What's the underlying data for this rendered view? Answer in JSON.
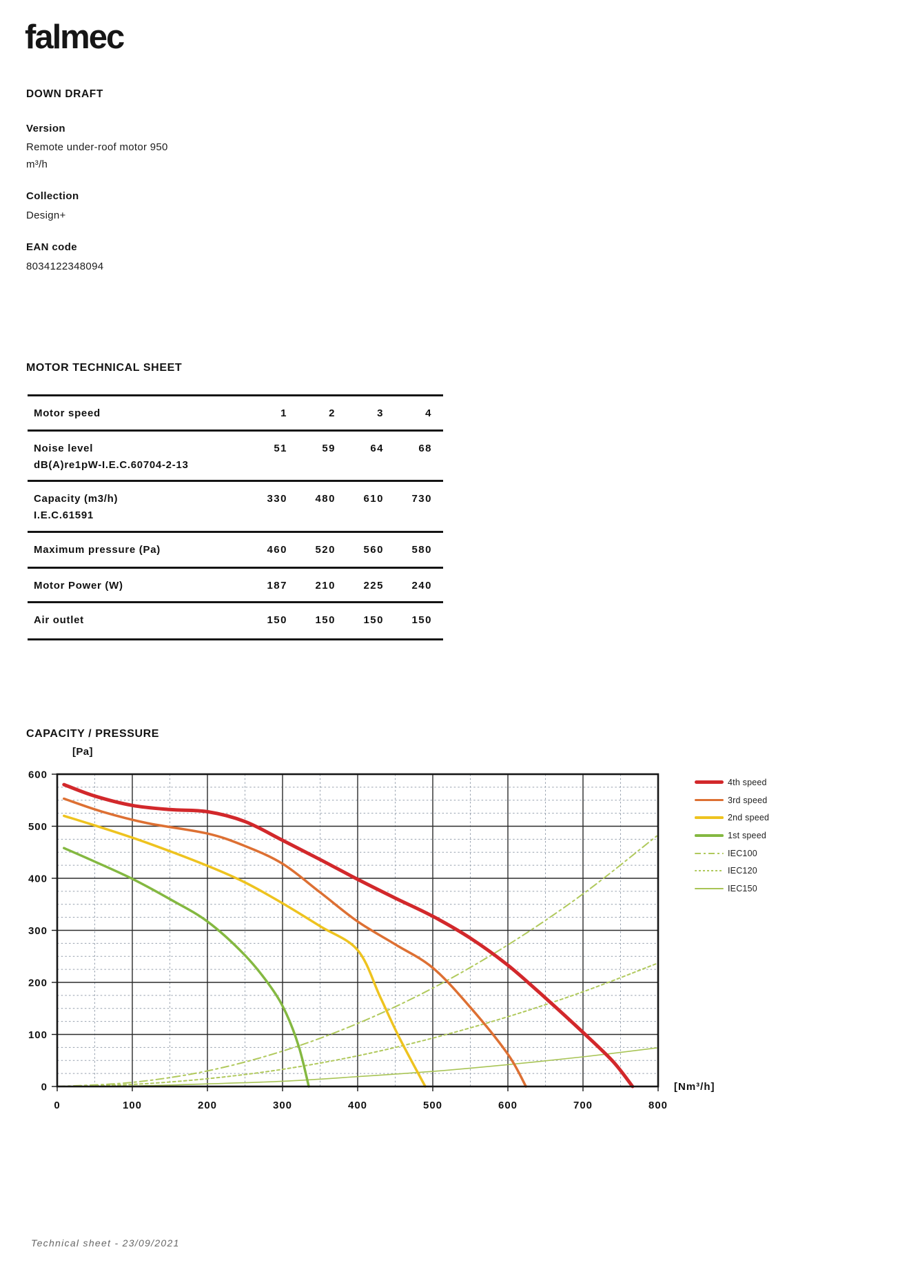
{
  "brand": {
    "logo_text": "falmec"
  },
  "product": {
    "title": "DOWN DRAFT",
    "version_label": "Version",
    "version_value": "Remote under-roof motor 950 m³/h",
    "collection_label": "Collection",
    "collection_value": "Design+",
    "ean_label": "EAN code",
    "ean_value": "8034122348094"
  },
  "table": {
    "title": "MOTOR TECHNICAL SHEET",
    "rows": [
      {
        "label": "Motor speed",
        "sublabel": "",
        "values": [
          "1",
          "2",
          "3",
          "4"
        ]
      },
      {
        "label": "Noise level",
        "sublabel": "dB(A)re1pW-I.E.C.60704-2-13",
        "values": [
          "51",
          "59",
          "64",
          "68"
        ]
      },
      {
        "label": "Capacity (m3/h)",
        "sublabel": "I.E.C.61591",
        "values": [
          "330",
          "480",
          "610",
          "730"
        ]
      },
      {
        "label": "Maximum pressure (Pa)",
        "sublabel": "",
        "values": [
          "460",
          "520",
          "560",
          "580"
        ]
      },
      {
        "label": "Motor Power (W)",
        "sublabel": "",
        "values": [
          "187",
          "210",
          "225",
          "240"
        ]
      },
      {
        "label": "Air outlet",
        "sublabel": "",
        "values": [
          "150",
          "150",
          "150",
          "150"
        ]
      }
    ]
  },
  "chart": {
    "title": "CAPACITY / PRESSURE",
    "y_unit": "[Pa]",
    "x_unit": "[Nm³/h]"
  },
  "chart_data": {
    "type": "line",
    "title": "CAPACITY / PRESSURE",
    "xlabel": "[Nm³/h]",
    "ylabel": "[Pa]",
    "xlim": [
      0,
      800
    ],
    "ylim": [
      0,
      600
    ],
    "xticks": [
      0,
      100,
      200,
      300,
      400,
      500,
      600,
      700,
      800
    ],
    "yticks": [
      0,
      100,
      200,
      300,
      400,
      500,
      600
    ],
    "x_minor_step": 50,
    "y_minor_step": 25,
    "grid": true,
    "legend_position": "right-top",
    "colors": {
      "major_grid": "#2b2b2b",
      "minor_grid": "#96a0ae",
      "border": "#161616"
    },
    "series": [
      {
        "name": "4th speed",
        "color": "#d2282b",
        "width": 5,
        "dash": "solid",
        "points": [
          [
            9,
            580
          ],
          [
            50,
            558
          ],
          [
            100,
            540
          ],
          [
            150,
            532
          ],
          [
            200,
            528
          ],
          [
            250,
            509
          ],
          [
            300,
            473
          ],
          [
            350,
            436
          ],
          [
            400,
            398
          ],
          [
            450,
            362
          ],
          [
            500,
            327
          ],
          [
            550,
            285
          ],
          [
            600,
            233
          ],
          [
            650,
            170
          ],
          [
            700,
            104
          ],
          [
            740,
            48
          ],
          [
            766,
            0
          ]
        ]
      },
      {
        "name": "3rd speed",
        "color": "#dd7033",
        "width": 3.5,
        "dash": "solid",
        "points": [
          [
            9,
            553
          ],
          [
            60,
            528
          ],
          [
            120,
            506
          ],
          [
            200,
            486
          ],
          [
            250,
            462
          ],
          [
            300,
            428
          ],
          [
            350,
            373
          ],
          [
            400,
            317
          ],
          [
            450,
            273
          ],
          [
            500,
            228
          ],
          [
            550,
            152
          ],
          [
            600,
            62
          ],
          [
            624,
            0
          ]
        ]
      },
      {
        "name": "2nd speed",
        "color": "#eec31f",
        "width": 3.5,
        "dash": "solid",
        "points": [
          [
            9,
            520
          ],
          [
            60,
            497
          ],
          [
            120,
            468
          ],
          [
            200,
            424
          ],
          [
            250,
            392
          ],
          [
            300,
            352
          ],
          [
            350,
            308
          ],
          [
            400,
            262
          ],
          [
            430,
            172
          ],
          [
            455,
            95
          ],
          [
            490,
            0
          ]
        ]
      },
      {
        "name": "1st speed",
        "color": "#84b841",
        "width": 3.5,
        "dash": "solid",
        "points": [
          [
            9,
            458
          ],
          [
            50,
            432
          ],
          [
            100,
            399
          ],
          [
            150,
            360
          ],
          [
            200,
            317
          ],
          [
            250,
            252
          ],
          [
            285,
            190
          ],
          [
            305,
            140
          ],
          [
            322,
            75
          ],
          [
            335,
            0
          ]
        ]
      },
      {
        "name": "IEC100",
        "color": "#b0c95c",
        "width": 2,
        "dash": "dashdot",
        "points": [
          [
            0,
            0
          ],
          [
            100,
            8
          ],
          [
            200,
            30
          ],
          [
            300,
            68
          ],
          [
            400,
            121
          ],
          [
            500,
            189
          ],
          [
            600,
            272
          ],
          [
            700,
            370
          ],
          [
            798,
            481
          ]
        ]
      },
      {
        "name": "IEC120",
        "color": "#b0c95c",
        "width": 2,
        "dash": "dotted",
        "points": [
          [
            0,
            0
          ],
          [
            100,
            4
          ],
          [
            200,
            15
          ],
          [
            300,
            33
          ],
          [
            400,
            59
          ],
          [
            500,
            93
          ],
          [
            600,
            134
          ],
          [
            700,
            182
          ],
          [
            798,
            236
          ]
        ]
      },
      {
        "name": "IEC150",
        "color": "#a8c455",
        "width": 1.6,
        "dash": "solid",
        "points": [
          [
            0,
            0
          ],
          [
            100,
            1
          ],
          [
            200,
            5
          ],
          [
            300,
            10
          ],
          [
            400,
            19
          ],
          [
            500,
            29
          ],
          [
            600,
            42
          ],
          [
            700,
            57
          ],
          [
            798,
            74
          ]
        ]
      }
    ]
  },
  "footer": {
    "text": "Technical sheet - 23/09/2021"
  }
}
